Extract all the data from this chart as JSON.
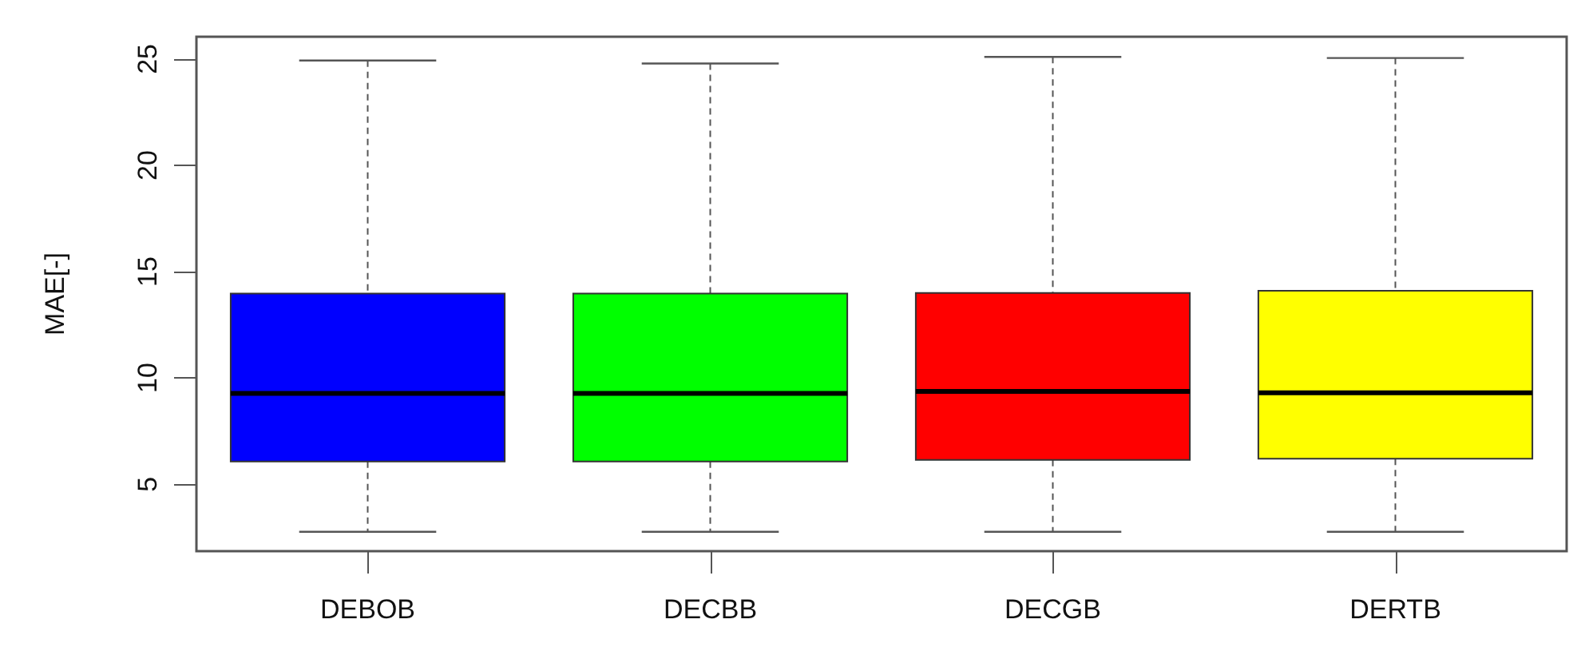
{
  "chart_data": {
    "type": "box",
    "ylabel": "MAE[-]",
    "categories": [
      "DEBOB",
      "DECBB",
      "DECGB",
      "DERTB"
    ],
    "colors": [
      "#0000ff",
      "#00ff00",
      "#ff0000",
      "#ffff00"
    ],
    "boxes": [
      {
        "low": 2.76,
        "q1": 6.07,
        "median": 9.27,
        "q3": 13.97,
        "high": 24.93
      },
      {
        "low": 2.76,
        "q1": 6.07,
        "median": 9.27,
        "q3": 13.97,
        "high": 24.79
      },
      {
        "low": 2.76,
        "q1": 6.14,
        "median": 9.37,
        "q3": 14.0,
        "high": 25.1
      },
      {
        "low": 2.76,
        "q1": 6.2,
        "median": 9.3,
        "q3": 14.1,
        "high": 25.05
      }
    ],
    "ylim": [
      1.85,
      26.05
    ],
    "yticks": [
      5,
      10,
      15,
      20,
      25
    ],
    "grid": false
  }
}
